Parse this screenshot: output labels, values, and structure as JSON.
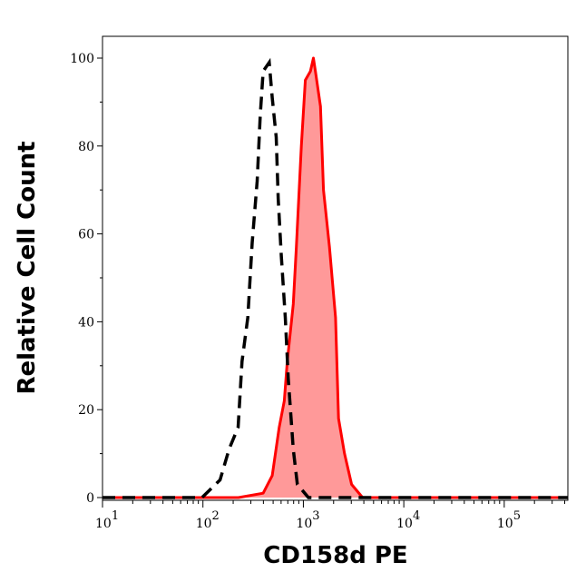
{
  "chart_data": {
    "type": "area",
    "title": "",
    "xlabel": "CD158d PE",
    "ylabel": "Relative Cell Count",
    "x_scale": "log",
    "xlim": [
      10,
      430000
    ],
    "ylim": [
      0,
      100
    ],
    "x_ticks": [
      {
        "base": "10",
        "exp": "1",
        "value": 10
      },
      {
        "base": "10",
        "exp": "2",
        "value": 100
      },
      {
        "base": "10",
        "exp": "3",
        "value": 1000
      },
      {
        "base": "10",
        "exp": "4",
        "value": 10000
      },
      {
        "base": "10",
        "exp": "5",
        "value": 100000
      }
    ],
    "y_ticks": [
      "0",
      "20",
      "40",
      "60",
      "80",
      "100"
    ],
    "grid": false,
    "series": [
      {
        "style": "dashed-line",
        "color": "#000000",
        "x": [
          10,
          98,
          148,
          182,
          224,
          245,
          280,
          309,
          347,
          372,
          398,
          457,
          490,
          537,
          562,
          603,
          661,
          708,
          794,
          871,
          1122,
          430000
        ],
        "y": [
          0,
          0,
          4,
          11,
          16,
          31,
          41,
          58,
          72,
          87,
          97,
          99,
          91,
          82,
          68,
          55,
          41,
          27,
          11,
          3,
          0,
          0
        ]
      },
      {
        "style": "filled",
        "color": "#ff0000",
        "fill": "#ff9999",
        "x": [
          10,
          226,
          398,
          490,
          575,
          646,
          692,
          794,
          851,
          955,
          1047,
          1175,
          1259,
          1318,
          1479,
          1585,
          1820,
          2089,
          2239,
          2570,
          3020,
          3890,
          430000
        ],
        "y": [
          0,
          0,
          1,
          5,
          16,
          22,
          31,
          44,
          57,
          80,
          95,
          97,
          100,
          97,
          89,
          70,
          57,
          41,
          18,
          10,
          3,
          0,
          0
        ]
      }
    ]
  }
}
